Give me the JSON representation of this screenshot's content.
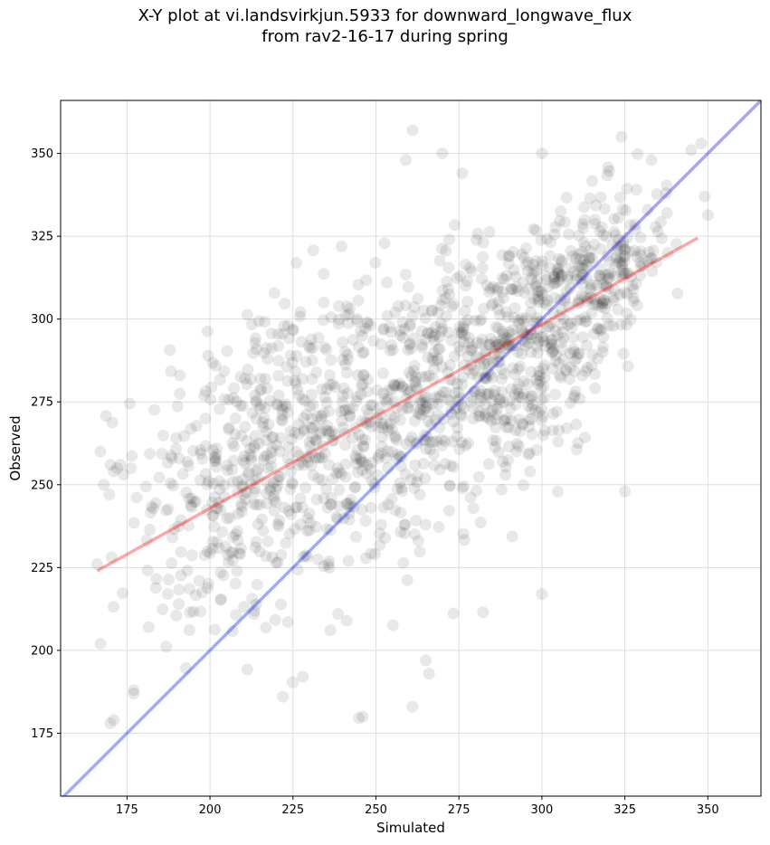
{
  "chart_data": {
    "type": "scatter",
    "title_lines": [
      "X-Y plot at vi.landsvirkjun.5933 for downward_longwave_flux",
      "from rav2-16-17 during spring"
    ],
    "xlabel": "Simulated",
    "ylabel": "Observed",
    "xlim": [
      155,
      366
    ],
    "ylim": [
      156,
      366
    ],
    "xticks": [
      175,
      200,
      225,
      250,
      275,
      300,
      325,
      350
    ],
    "yticks": [
      175,
      200,
      225,
      250,
      275,
      300,
      325,
      350
    ],
    "grid": true,
    "point_color": "#000000",
    "point_opacity": 0.09,
    "point_count": 1500,
    "points_note": "approximate cloud reconstructed from visible density",
    "regression_line": {
      "name": "fit",
      "color": "#ff0000",
      "opacity": 0.35,
      "x": [
        166,
        347
      ],
      "y": [
        224,
        324.5
      ]
    },
    "identity_line": {
      "name": "1:1",
      "color": "#0000ff",
      "opacity": 0.35,
      "x": [
        155,
        366
      ],
      "y": [
        155,
        366
      ]
    },
    "clusters": [
      {
        "cx": 215,
        "cy": 262,
        "sx": 18,
        "sy": 22,
        "n": 380
      },
      {
        "cx": 255,
        "cy": 268,
        "sx": 20,
        "sy": 22,
        "n": 420
      },
      {
        "cx": 290,
        "cy": 290,
        "sx": 16,
        "sy": 18,
        "n": 420
      },
      {
        "cx": 318,
        "cy": 315,
        "sx": 10,
        "sy": 12,
        "n": 230
      },
      {
        "cx": 200,
        "cy": 222,
        "sx": 12,
        "sy": 14,
        "n": 50
      }
    ],
    "outliers": [
      [
        172,
        255
      ],
      [
        173,
        256
      ],
      [
        171,
        254
      ],
      [
        174,
        253
      ],
      [
        170,
        256
      ],
      [
        167,
        260
      ],
      [
        168,
        250
      ],
      [
        166,
        226
      ],
      [
        167,
        202
      ],
      [
        170,
        178
      ],
      [
        171,
        179
      ],
      [
        177,
        187
      ],
      [
        177,
        188
      ],
      [
        261,
        357
      ],
      [
        259,
        348
      ],
      [
        270,
        350
      ],
      [
        276,
        344
      ],
      [
        300,
        350
      ],
      [
        324,
        355
      ],
      [
        333,
        348
      ],
      [
        345,
        351
      ],
      [
        348,
        353
      ],
      [
        349,
        337
      ],
      [
        246,
        180
      ],
      [
        222,
        186
      ],
      [
        228,
        192
      ],
      [
        261,
        183
      ],
      [
        300,
        217
      ],
      [
        325,
        248
      ],
      [
        265,
        197
      ],
      [
        266,
        193
      ]
    ]
  }
}
